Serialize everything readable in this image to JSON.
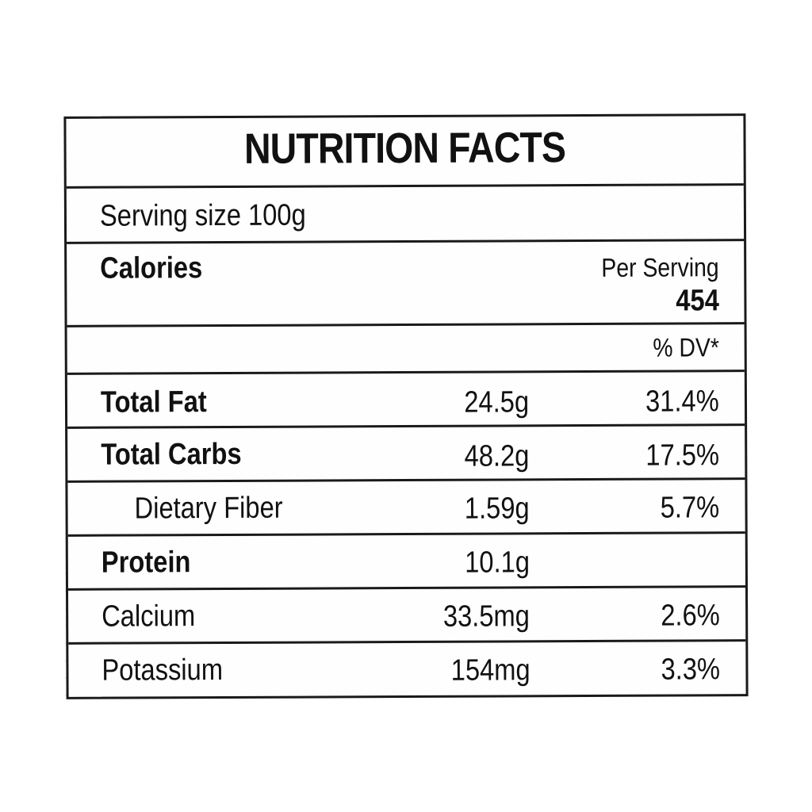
{
  "label": {
    "title": "NUTRITION FACTS",
    "serving_size": "Serving size  100g",
    "calories_label": "Calories",
    "per_serving_label": "Per Serving",
    "calories_value": "454",
    "dv_header": "% DV*",
    "rows": [
      {
        "name": "Total Fat",
        "amount": "24.5g",
        "dv": "31.4%"
      },
      {
        "name": "Total Carbs",
        "amount": "48.2g",
        "dv": "17.5%"
      },
      {
        "name": "Dietary Fiber",
        "amount": "1.59g",
        "dv": "5.7%"
      },
      {
        "name": "Protein",
        "amount": "10.1g",
        "dv": ""
      },
      {
        "name": "Calcium",
        "amount": "33.5mg",
        "dv": "2.6%"
      },
      {
        "name": "Potassium",
        "amount": "154mg",
        "dv": "3.3%"
      }
    ]
  }
}
